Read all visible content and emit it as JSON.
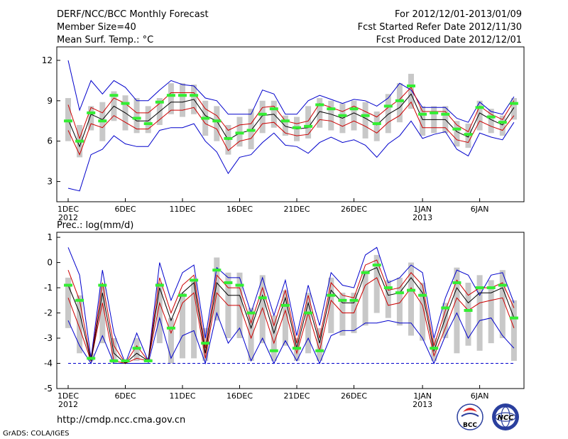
{
  "header": {
    "title": "DERF/NCC/BCC Monthly Forecast",
    "member_size": "Member Size=40",
    "variable": "Mean Surf. Temp.: °C",
    "period": "For 2012/12/01-2013/01/09",
    "fcst_started": "Fcst Started Refer Date 2012/11/30",
    "fcst_produced": "Fcst Produced Date 2012/12/01"
  },
  "footer": {
    "url": "http://cmdp.ncc.cma.gov.cn",
    "grads": "GrADS: COLA/IGES",
    "logo_bcc": "BCC",
    "logo_ncc": "NCC"
  },
  "colors": {
    "envelope": "#0000cc",
    "spread": "#cc0000",
    "mean": "#000000",
    "box": "#c8c8c8",
    "median": "#33ee33",
    "baseline": "#0000cc"
  },
  "chart_data": [
    {
      "type": "box-ensemble",
      "title": "Mean Surf. Temp.: °C",
      "ylim": [
        1.5,
        13
      ],
      "yticks": [
        3,
        6,
        9,
        12
      ],
      "xticks": [
        {
          "day": 1,
          "label": "1DEC",
          "sub": "2012"
        },
        {
          "day": 6,
          "label": "6DEC",
          "sub": ""
        },
        {
          "day": 11,
          "label": "11DEC",
          "sub": ""
        },
        {
          "day": 16,
          "label": "16DEC",
          "sub": ""
        },
        {
          "day": 21,
          "label": "21DEC",
          "sub": ""
        },
        {
          "day": 26,
          "label": "26DEC",
          "sub": ""
        },
        {
          "day": 32,
          "label": "1JAN",
          "sub": "2013"
        },
        {
          "day": 37,
          "label": "6JAN",
          "sub": ""
        }
      ],
      "days": [
        1,
        2,
        3,
        4,
        5,
        6,
        7,
        8,
        9,
        10,
        11,
        12,
        13,
        14,
        15,
        16,
        17,
        18,
        19,
        20,
        21,
        22,
        23,
        24,
        25,
        26,
        27,
        28,
        29,
        30,
        31,
        32,
        33,
        34,
        35,
        36,
        37,
        38,
        39,
        40
      ],
      "max": [
        12.0,
        8.3,
        10.5,
        9.5,
        10.5,
        10.0,
        9.0,
        9.0,
        9.8,
        10.5,
        10.2,
        10.1,
        9.2,
        9.0,
        8.0,
        8.0,
        8.0,
        9.8,
        9.5,
        8.0,
        8.0,
        9.0,
        9.4,
        9.1,
        8.8,
        9.1,
        9.0,
        8.6,
        9.2,
        10.3,
        9.8,
        8.5,
        8.5,
        8.5,
        7.7,
        7.4,
        8.9,
        8.2,
        8.0,
        9.3
      ],
      "upper": [
        8.7,
        6.2,
        8.5,
        8.1,
        9.2,
        8.8,
        8.1,
        8.1,
        8.8,
        9.6,
        9.6,
        9.6,
        8.4,
        7.9,
        6.8,
        7.2,
        7.3,
        8.5,
        8.6,
        7.5,
        7.3,
        7.5,
        8.8,
        8.5,
        8.2,
        8.6,
        8.2,
        7.8,
        8.5,
        9.1,
        10.0,
        8.2,
        8.2,
        8.2,
        7.2,
        6.7,
        8.6,
        8.0,
        7.6,
        9.0
      ],
      "mean": [
        7.6,
        5.6,
        8.0,
        7.6,
        8.6,
        8.1,
        7.5,
        7.5,
        8.2,
        8.9,
        8.9,
        9.1,
        7.9,
        7.5,
        6.1,
        6.6,
        6.8,
        7.9,
        8.0,
        7.1,
        6.9,
        7.0,
        8.2,
        8.0,
        7.7,
        8.1,
        7.7,
        7.2,
        8.0,
        8.5,
        9.5,
        7.6,
        7.6,
        7.6,
        6.7,
        6.3,
        8.1,
        7.6,
        7.2,
        8.5
      ],
      "lower": [
        6.8,
        5.0,
        7.3,
        7.0,
        7.9,
        7.4,
        6.9,
        6.9,
        7.6,
        8.3,
        8.3,
        8.5,
        7.3,
        6.9,
        5.3,
        6.0,
        6.2,
        7.3,
        7.4,
        6.6,
        6.4,
        6.5,
        7.6,
        7.5,
        7.1,
        7.5,
        7.1,
        6.6,
        7.4,
        7.9,
        8.9,
        7.0,
        7.0,
        7.0,
        6.1,
        5.9,
        7.5,
        7.1,
        6.8,
        7.9
      ],
      "min": [
        2.5,
        2.3,
        5.0,
        5.4,
        6.4,
        5.8,
        5.6,
        5.6,
        6.8,
        7.0,
        7.0,
        7.3,
        6.0,
        5.2,
        3.6,
        4.8,
        5.0,
        5.9,
        6.6,
        5.7,
        5.6,
        5.1,
        5.9,
        6.3,
        5.9,
        6.1,
        5.7,
        4.8,
        5.8,
        6.4,
        7.5,
        6.2,
        6.5,
        6.7,
        5.4,
        4.9,
        6.6,
        6.3,
        6.1,
        7.4
      ],
      "box_top": [
        9.2,
        7.2,
        8.6,
        8.9,
        9.7,
        9.4,
        9.2,
        8.6,
        9.2,
        10.3,
        10.3,
        10.2,
        9.0,
        8.6,
        7.2,
        7.8,
        8.4,
        9.0,
        9.0,
        7.9,
        7.8,
        8.6,
        9.2,
        9.0,
        8.8,
        9.0,
        8.9,
        8.2,
        9.5,
        10.3,
        11.0,
        8.6,
        8.6,
        8.6,
        7.5,
        7.3,
        9.0,
        8.4,
        7.9,
        9.2
      ],
      "box_bottom": [
        6.0,
        4.8,
        6.8,
        6.0,
        7.5,
        6.8,
        6.6,
        6.6,
        7.2,
        8.0,
        7.8,
        8.0,
        6.4,
        6.0,
        5.0,
        5.6,
        5.4,
        6.6,
        7.0,
        6.4,
        6.0,
        6.2,
        7.0,
        6.8,
        6.6,
        6.8,
        6.2,
        6.0,
        6.6,
        7.4,
        8.4,
        6.4,
        6.6,
        6.6,
        5.6,
        5.5,
        6.8,
        6.6,
        6.4,
        7.6
      ],
      "median": [
        7.5,
        6.0,
        8.1,
        7.5,
        9.4,
        8.8,
        7.7,
        7.3,
        8.9,
        9.4,
        9.4,
        9.4,
        7.7,
        7.5,
        6.2,
        6.6,
        6.8,
        8.0,
        8.4,
        7.5,
        7.0,
        7.1,
        8.7,
        8.4,
        7.9,
        8.4,
        7.9,
        7.3,
        8.6,
        9.0,
        10.1,
        8.0,
        8.1,
        8.0,
        6.9,
        6.5,
        8.5,
        7.8,
        7.4,
        8.8
      ]
    },
    {
      "type": "box-ensemble",
      "title": "Prec.: log(mm/d)",
      "ylim": [
        -5,
        1.2
      ],
      "yticks": [
        -5,
        -4,
        -3,
        -2,
        -1,
        0,
        1
      ],
      "baseline": -4,
      "xticks": [
        {
          "day": 1,
          "label": "1DEC",
          "sub": "2012"
        },
        {
          "day": 6,
          "label": "6DEC",
          "sub": ""
        },
        {
          "day": 11,
          "label": "11DEC",
          "sub": ""
        },
        {
          "day": 16,
          "label": "16DEC",
          "sub": ""
        },
        {
          "day": 21,
          "label": "21DEC",
          "sub": ""
        },
        {
          "day": 26,
          "label": "26DEC",
          "sub": ""
        },
        {
          "day": 32,
          "label": "1JAN",
          "sub": "2013"
        },
        {
          "day": 37,
          "label": "6JAN",
          "sub": ""
        }
      ],
      "days": [
        1,
        2,
        3,
        4,
        5,
        6,
        7,
        8,
        9,
        10,
        11,
        12,
        13,
        14,
        15,
        16,
        17,
        18,
        19,
        20,
        21,
        22,
        23,
        24,
        25,
        26,
        27,
        28,
        29,
        30,
        31,
        32,
        33,
        34,
        35,
        36,
        37,
        38,
        39,
        40
      ],
      "max": [
        0.6,
        -0.5,
        -3.8,
        -0.3,
        -2.8,
        -4.0,
        -2.8,
        -3.9,
        0.0,
        -1.5,
        -0.4,
        -0.1,
        -3.0,
        -0.2,
        -0.6,
        -0.6,
        -2.0,
        -0.6,
        -2.1,
        -0.7,
        -2.9,
        -0.9,
        -2.5,
        -0.4,
        -0.9,
        -1.0,
        0.3,
        0.6,
        -0.8,
        -0.6,
        -0.1,
        -0.4,
        -3.0,
        -1.4,
        -0.3,
        -0.5,
        -1.3,
        -0.5,
        -0.4,
        -1.6
      ],
      "upper": [
        -0.3,
        -1.5,
        -3.9,
        -0.8,
        -3.3,
        -4.0,
        -3.3,
        -3.9,
        -0.6,
        -2.0,
        -0.9,
        -0.5,
        -3.4,
        -0.5,
        -1.0,
        -1.0,
        -2.4,
        -1.0,
        -2.5,
        -1.1,
        -3.2,
        -1.3,
        -3.0,
        -0.8,
        -1.3,
        -1.4,
        -0.1,
        0.1,
        -1.1,
        -1.0,
        -0.4,
        -0.9,
        -3.3,
        -1.9,
        -0.7,
        -1.3,
        -1.0,
        -1.0,
        -0.8,
        -1.8
      ],
      "mean": [
        -0.9,
        -2.0,
        -3.9,
        -1.2,
        -3.6,
        -4.0,
        -3.6,
        -3.9,
        -1.0,
        -2.3,
        -1.2,
        -0.8,
        -3.6,
        -0.8,
        -1.3,
        -1.3,
        -2.6,
        -1.3,
        -2.8,
        -1.4,
        -3.4,
        -1.6,
        -3.2,
        -1.1,
        -1.6,
        -1.6,
        -0.4,
        -0.2,
        -1.3,
        -1.2,
        -0.6,
        -1.2,
        -3.5,
        -2.2,
        -1.0,
        -1.6,
        -1.2,
        -1.2,
        -1.0,
        -2.2
      ],
      "lower": [
        -1.4,
        -2.6,
        -3.9,
        -1.6,
        -3.9,
        -4.0,
        -3.8,
        -3.9,
        -1.6,
        -2.8,
        -1.6,
        -1.2,
        -3.8,
        -1.2,
        -1.7,
        -1.7,
        -3.0,
        -1.8,
        -3.2,
        -1.9,
        -3.6,
        -2.0,
        -3.5,
        -1.5,
        -2.0,
        -2.0,
        -0.9,
        -0.6,
        -1.7,
        -1.6,
        -1.0,
        -1.7,
        -3.7,
        -2.6,
        -1.4,
        -1.9,
        -1.6,
        -1.5,
        -1.4,
        -2.6
      ],
      "min": [
        -2.3,
        -3.3,
        -4.0,
        -2.9,
        -4.0,
        -4.0,
        -4.0,
        -4.0,
        -2.2,
        -3.8,
        -2.9,
        -2.7,
        -4.0,
        -2.0,
        -3.2,
        -2.6,
        -3.9,
        -3.0,
        -4.0,
        -3.1,
        -3.9,
        -3.0,
        -4.0,
        -2.9,
        -2.7,
        -2.7,
        -2.4,
        -2.4,
        -2.3,
        -2.4,
        -2.4,
        -3.0,
        -4.0,
        -2.9,
        -2.0,
        -3.0,
        -2.3,
        -2.2,
        -2.9,
        -3.4
      ],
      "box_top": [
        -0.6,
        -1.3,
        -3.6,
        -0.9,
        -3.0,
        -3.9,
        -3.0,
        -3.8,
        -0.8,
        -2.2,
        -1.2,
        -0.7,
        -2.6,
        0.2,
        -0.4,
        -0.4,
        -1.8,
        -0.5,
        -2.1,
        -1.1,
        -3.0,
        -1.2,
        -2.6,
        -0.6,
        -1.2,
        -1.2,
        -0.3,
        0.3,
        -0.7,
        -0.6,
        0.0,
        -0.8,
        -3.0,
        -1.6,
        -0.2,
        -0.8,
        -0.5,
        -0.7,
        -0.3,
        -1.5
      ],
      "box_bottom": [
        -2.6,
        -3.6,
        -3.9,
        -3.2,
        -4.0,
        -3.9,
        -3.9,
        -3.9,
        -3.2,
        -4.0,
        -3.8,
        -3.8,
        -3.9,
        -2.3,
        -3.0,
        -3.0,
        -3.9,
        -3.2,
        -3.9,
        -3.3,
        -3.9,
        -3.6,
        -3.9,
        -2.8,
        -2.9,
        -2.8,
        -2.5,
        -2.0,
        -2.2,
        -2.5,
        -2.9,
        -3.1,
        -3.9,
        -3.0,
        -3.6,
        -3.3,
        -3.5,
        -3.2,
        -3.0,
        -3.9
      ],
      "median": [
        -0.9,
        -1.5,
        -3.8,
        -0.9,
        -3.9,
        -3.9,
        -3.4,
        -3.9,
        -0.9,
        -2.6,
        -1.3,
        -0.7,
        -3.2,
        -0.3,
        -0.8,
        -0.9,
        -2.0,
        -1.4,
        -3.5,
        -1.7,
        -3.4,
        -2.0,
        -3.5,
        -1.3,
        -1.5,
        -1.5,
        -0.4,
        -0.1,
        -1.0,
        -1.2,
        -1.1,
        -1.3,
        -3.4,
        -1.8,
        -0.8,
        -1.9,
        -1.0,
        -1.0,
        -0.9,
        -2.2
      ]
    }
  ]
}
